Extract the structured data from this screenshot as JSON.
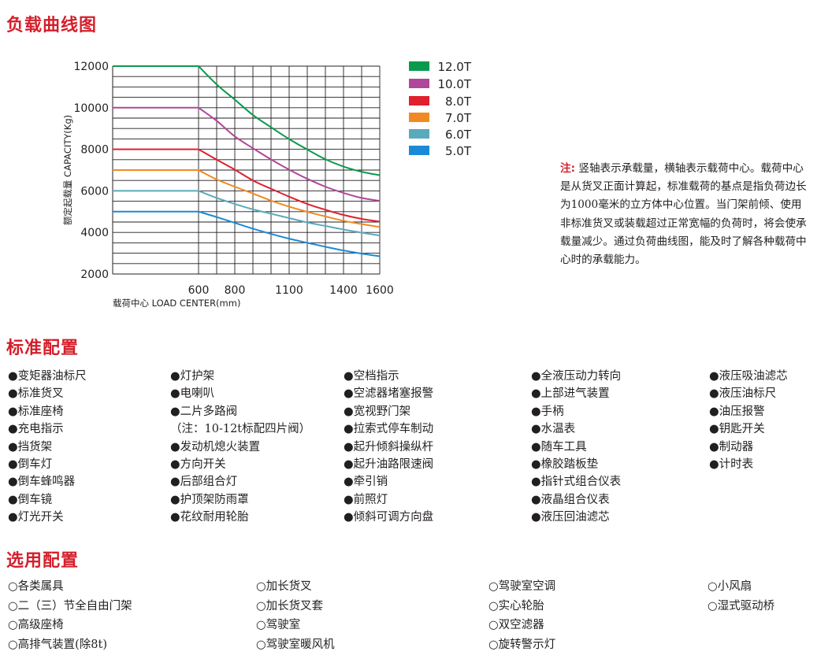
{
  "chart_section": {
    "title": "负载曲线图"
  },
  "chart_data": {
    "type": "line",
    "xlabel": "载荷中心 LOAD CENTER(mm)",
    "ylabel": "额定起载量 CAPACITY(Kg)",
    "x_ticks": [
      "600",
      "800",
      "1100",
      "1400",
      "1600"
    ],
    "y_ticks": [
      "12000",
      "10000",
      "8000",
      "6000",
      "4000",
      "2000"
    ],
    "xlim": [
      600,
      1600
    ],
    "ylim": [
      2000,
      12000
    ],
    "grid": true,
    "legend_position": "right",
    "x": [
      600,
      700,
      800,
      900,
      1000,
      1100,
      1200,
      1300,
      1400,
      1500,
      1600
    ],
    "series": [
      {
        "name": "12.0T",
        "color": "#0a9a4e",
        "values": [
          12000,
          11120,
          10390,
          9650,
          9060,
          8490,
          7990,
          7520,
          7170,
          6920,
          6750
        ]
      },
      {
        "name": "10.0T",
        "color": "#b0479a",
        "values": [
          10000,
          9370,
          8620,
          8050,
          7510,
          7020,
          6580,
          6200,
          5900,
          5660,
          5520
        ]
      },
      {
        "name": "8.0T",
        "color": "#e0202e",
        "values": [
          8000,
          7500,
          7020,
          6500,
          6100,
          5720,
          5370,
          5090,
          4840,
          4650,
          4520
        ]
      },
      {
        "name": "7.0T",
        "color": "#f08a20",
        "values": [
          7000,
          6550,
          6200,
          5870,
          5530,
          5240,
          4990,
          4770,
          4560,
          4400,
          4260
        ]
      },
      {
        "name": "6.0T",
        "color": "#5aaabb",
        "values": [
          6000,
          5660,
          5370,
          5110,
          4900,
          4690,
          4480,
          4310,
          4140,
          3990,
          3850
        ]
      },
      {
        "name": "5.0T",
        "color": "#1a8ad8",
        "values": [
          5000,
          4740,
          4460,
          4180,
          3930,
          3700,
          3500,
          3310,
          3130,
          2980,
          2850
        ]
      }
    ]
  },
  "note": {
    "label": "注:",
    "text": "竖轴表示承载量，横轴表示载荷中心。载荷中心是从货叉正面计算起，标准载荷的基点是指负荷边长为1000毫米的立方体中心位置。当门架前倾、使用非标准货叉或装载超过正常宽幅的负荷时，将会使承载量减少。通过负荷曲线图，能及时了解各种载荷中心时的承载能力。"
  },
  "standard": {
    "title": "标准配置",
    "columns": [
      [
        "●变矩器油标尺",
        "●标准货叉",
        "●标准座椅",
        "●充电指示",
        "●挡货架",
        "●倒车灯",
        "●倒车蜂鸣器",
        "●倒车镜",
        "●灯光开关"
      ],
      [
        "●灯护架",
        "●电喇叭",
        "●二片多路阀",
        "（注：10-12t标配四片阀）",
        "●发动机熄火装置",
        "●方向开关",
        "●后部组合灯",
        "●护顶架防雨罩",
        "●花纹耐用轮胎"
      ],
      [
        "●空档指示",
        "●空滤器堵塞报警",
        "●宽视野门架",
        "●拉索式停车制动",
        "●起升倾斜操纵杆",
        "●起升油路限速阀",
        "●牵引销",
        "●前照灯",
        "●倾斜可调方向盘"
      ],
      [
        "●全液压动力转向",
        "●上部进气装置",
        "●手柄",
        "●水温表",
        "●随车工具",
        "●橡胶踏板垫",
        "●指针式组合仪表",
        "●液晶组合仪表",
        "●液压回油滤芯"
      ],
      [
        "●液压吸油滤芯",
        "●液压油标尺",
        "●油压报警",
        "●钥匙开关",
        "●制动器",
        "●计时表"
      ]
    ]
  },
  "optional": {
    "title": "选用配置",
    "columns": [
      [
        "○各类属具",
        "○二（三）节全自由门架",
        "○高级座椅",
        "○高排气装置(除8t)"
      ],
      [
        "○加长货叉",
        "○加长货叉套",
        "○驾驶室",
        "○驾驶室暖风机"
      ],
      [
        "○驾驶室空调",
        "○实心轮胎",
        "○双空滤器",
        "○旋转警示灯"
      ],
      [
        "○小风扇",
        "○湿式驱动桥"
      ]
    ]
  }
}
